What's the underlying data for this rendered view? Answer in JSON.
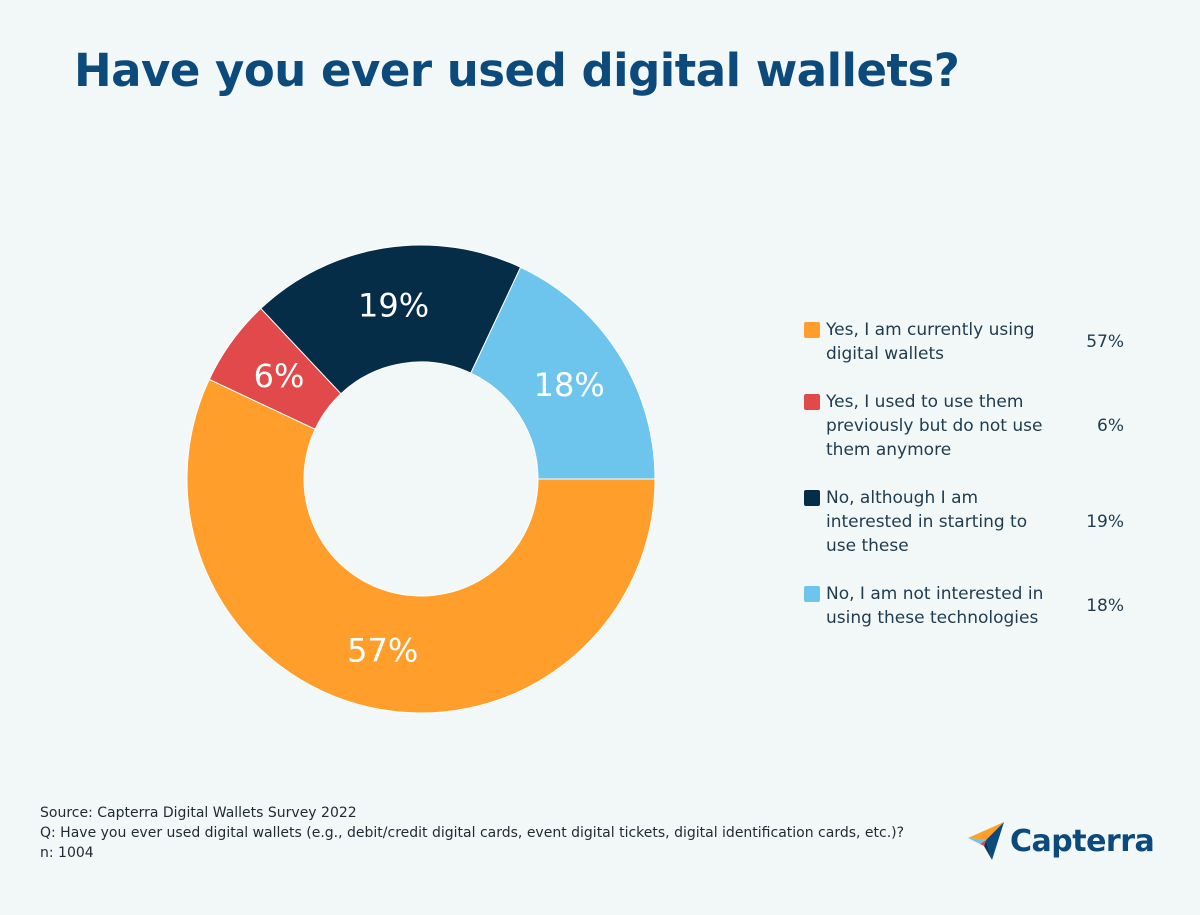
{
  "title": "Have you ever used digital wallets?",
  "chart_data": {
    "type": "pie",
    "variant": "donut",
    "categories": [
      "Yes, I am currently using digital wallets",
      "Yes, I used to use them previously but do not use them anymore",
      "No, although I am interested in starting to use these",
      "No, I am not interested in using these technologies"
    ],
    "values": [
      57,
      6,
      19,
      18
    ],
    "labels": [
      "57%",
      "6%",
      "19%",
      "18%"
    ],
    "colors": [
      "#ff9e2b",
      "#e2494a",
      "#052d48",
      "#6dc5ee"
    ],
    "legend_position": "right"
  },
  "legend": [
    {
      "lines": [
        "Yes, I am currently using",
        "digital wallets"
      ],
      "value": "57%",
      "color": "#ff9e2b"
    },
    {
      "lines": [
        "Yes, I used to use them",
        "previously but do not use",
        "them anymore"
      ],
      "value": "6%",
      "color": "#e2494a"
    },
    {
      "lines": [
        "No, although I am",
        "interested in starting to",
        "use these"
      ],
      "value": "19%",
      "color": "#052d48"
    },
    {
      "lines": [
        "No, I am not interested in",
        "using these technologies"
      ],
      "value": "18%",
      "color": "#6dc5ee"
    }
  ],
  "footer": {
    "source": "Source: Capterra Digital Wallets Survey 2022",
    "question": "Q: Have you ever used digital wallets (e.g., debit/credit digital cards, event digital tickets, digital identification cards, etc.)?",
    "n": "n: 1004"
  },
  "logo": {
    "text": "Capterra",
    "icon": "capterra-arrow-icon"
  }
}
